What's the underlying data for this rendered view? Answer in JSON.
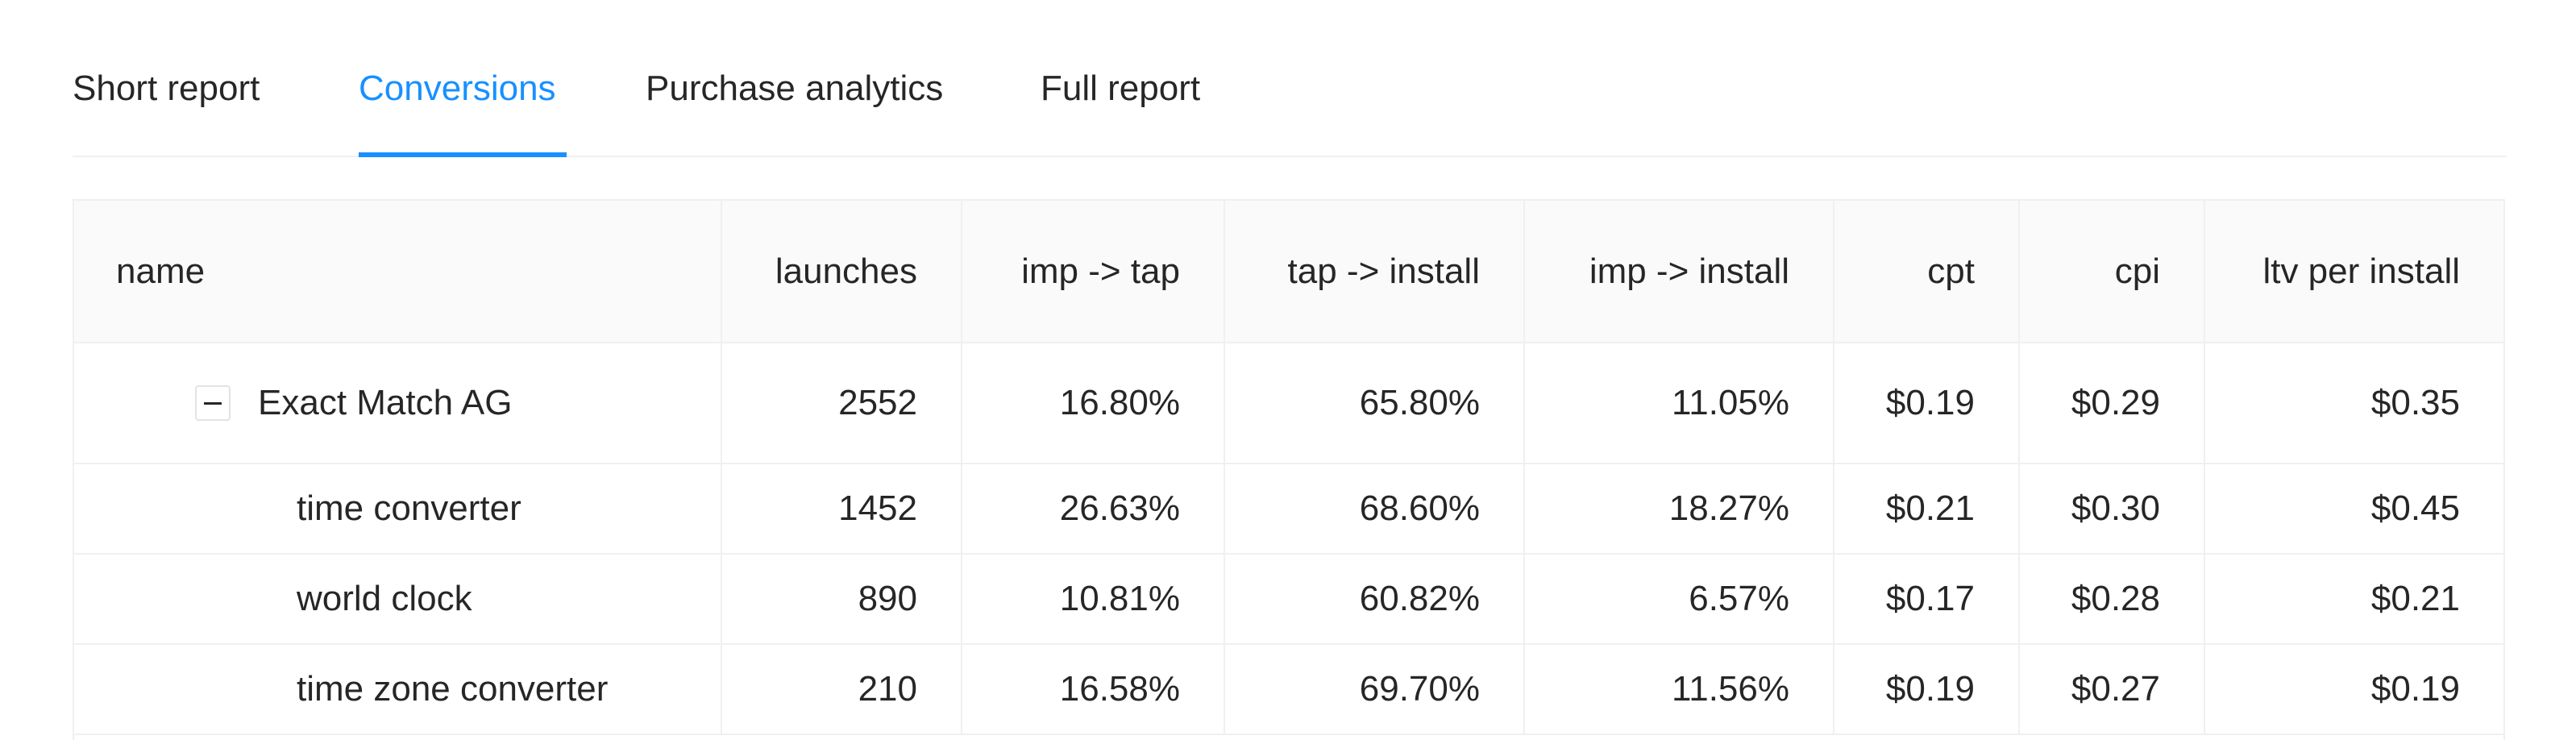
{
  "tabs": [
    {
      "label": "Short report",
      "active": false
    },
    {
      "label": "Conversions",
      "active": true
    },
    {
      "label": "Purchase analytics",
      "active": false
    },
    {
      "label": "Full report",
      "active": false
    }
  ],
  "table": {
    "columns": [
      "name",
      "launches",
      "imp -> tap",
      "tap -> install",
      "imp -> install",
      "cpt",
      "cpi",
      "ltv per install"
    ],
    "rows": [
      {
        "type": "group",
        "expanded": true,
        "cells": [
          "Exact Match AG",
          "2552",
          "16.80%",
          "65.80%",
          "11.05%",
          "$0.19",
          "$0.29",
          "$0.35"
        ]
      },
      {
        "type": "child",
        "cells": [
          "time converter",
          "1452",
          "26.63%",
          "68.60%",
          "18.27%",
          "$0.21",
          "$0.30",
          "$0.45"
        ]
      },
      {
        "type": "child",
        "cells": [
          "world clock",
          "890",
          "10.81%",
          "60.82%",
          "6.57%",
          "$0.17",
          "$0.28",
          "$0.21"
        ]
      },
      {
        "type": "child",
        "cells": [
          "time zone converter",
          "210",
          "16.58%",
          "69.70%",
          "11.56%",
          "$0.19",
          "$0.27",
          "$0.19"
        ]
      }
    ]
  },
  "colors": {
    "accent": "#1890ff",
    "header_bg": "#fafafa",
    "border": "#f0f0f0"
  }
}
